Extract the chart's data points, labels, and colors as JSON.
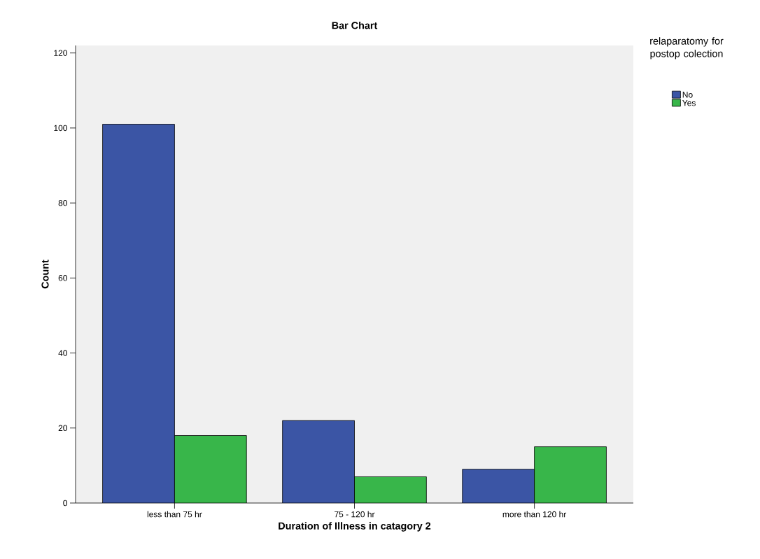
{
  "chart_data": {
    "type": "bar",
    "title": "Bar Chart",
    "xlabel": "Duration of Illness in catagory 2",
    "ylabel": "Count",
    "legend_title": "relaparatomy for postop colection",
    "categories": [
      "less than 75 hr",
      "75 - 120 hr",
      "more than 120 hr"
    ],
    "series": [
      {
        "name": "No",
        "color": "#3b55a5",
        "values": [
          101,
          22,
          9
        ]
      },
      {
        "name": "Yes",
        "color": "#38b64a",
        "values": [
          18,
          7,
          15
        ]
      }
    ],
    "ylim": [
      0,
      122
    ],
    "yticks": [
      0,
      20,
      40,
      60,
      80,
      100,
      120
    ],
    "legend": "right"
  }
}
